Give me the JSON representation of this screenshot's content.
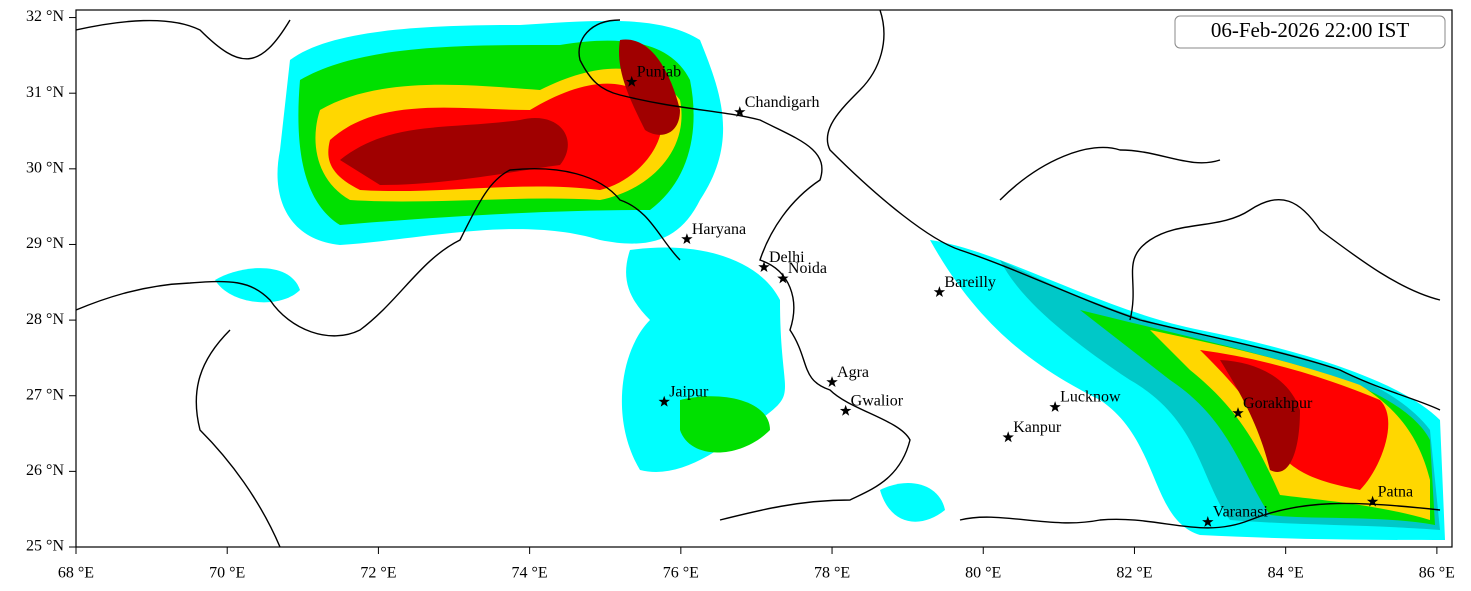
{
  "chart_data": {
    "type": "map",
    "title": "06-Feb-2026 22:00 IST",
    "xlim": [
      68,
      86.2
    ],
    "ylim": [
      25,
      32.1
    ],
    "xticks": [
      {
        "value": 68,
        "label": "68 °E"
      },
      {
        "value": 70,
        "label": "70 °E"
      },
      {
        "value": 72,
        "label": "72 °E"
      },
      {
        "value": 74,
        "label": "74 °E"
      },
      {
        "value": 76,
        "label": "76 °E"
      },
      {
        "value": 78,
        "label": "78 °E"
      },
      {
        "value": 80,
        "label": "80 °E"
      },
      {
        "value": 82,
        "label": "82 °E"
      },
      {
        "value": 84,
        "label": "84 °E"
      },
      {
        "value": 86,
        "label": "86 °E"
      }
    ],
    "yticks": [
      {
        "value": 25,
        "label": "25 °N"
      },
      {
        "value": 26,
        "label": "26 °N"
      },
      {
        "value": 27,
        "label": "27 °N"
      },
      {
        "value": 28,
        "label": "28 °N"
      },
      {
        "value": 29,
        "label": "29 °N"
      },
      {
        "value": 30,
        "label": "30 °N"
      },
      {
        "value": 31,
        "label": "31 °N"
      },
      {
        "value": 32,
        "label": "32 °N"
      }
    ],
    "cities": [
      {
        "name": "Punjab",
        "lon": 75.35,
        "lat": 31.15
      },
      {
        "name": "Chandigarh",
        "lon": 76.78,
        "lat": 30.75
      },
      {
        "name": "Haryana",
        "lon": 76.08,
        "lat": 29.07
      },
      {
        "name": "Delhi",
        "lon": 77.1,
        "lat": 28.7
      },
      {
        "name": "Noida",
        "lon": 77.35,
        "lat": 28.55
      },
      {
        "name": "Bareilly",
        "lon": 79.42,
        "lat": 28.37
      },
      {
        "name": "Agra",
        "lon": 78.0,
        "lat": 27.18
      },
      {
        "name": "Jaipur",
        "lon": 75.78,
        "lat": 26.92
      },
      {
        "name": "Gwalior",
        "lon": 78.18,
        "lat": 26.8
      },
      {
        "name": "Lucknow",
        "lon": 80.95,
        "lat": 26.85
      },
      {
        "name": "Kanpur",
        "lon": 80.33,
        "lat": 26.45
      },
      {
        "name": "Gorakhpur",
        "lon": 83.37,
        "lat": 26.77
      },
      {
        "name": "Patna",
        "lon": 85.15,
        "lat": 25.6
      },
      {
        "name": "Varanasi",
        "lon": 82.97,
        "lat": 25.33
      }
    ]
  }
}
